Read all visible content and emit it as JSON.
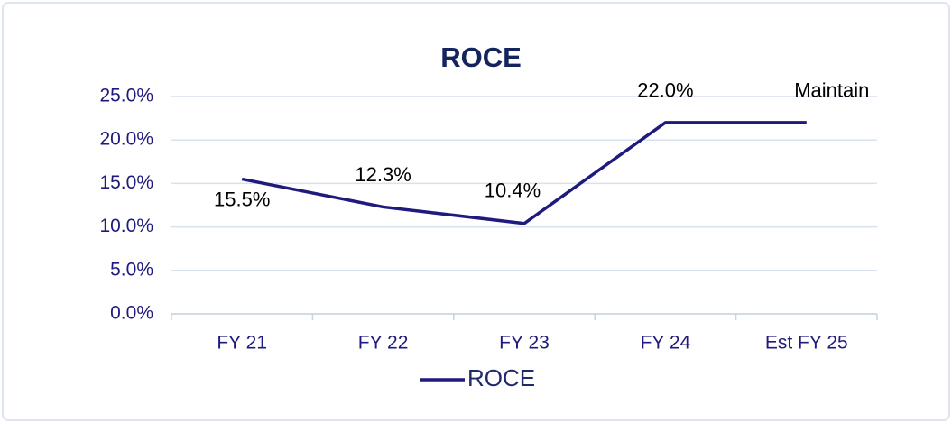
{
  "chart_data": {
    "type": "line",
    "title": "ROCE",
    "categories": [
      "FY 21",
      "FY 22",
      "FY 23",
      "FY 24",
      "Est FY 25"
    ],
    "series": [
      {
        "name": "ROCE",
        "color": "#1f1a7d",
        "values": [
          15.5,
          12.3,
          10.4,
          22.0,
          22.0
        ],
        "value_labels": [
          "15.5%",
          "12.3%",
          "10.4%",
          "22.0%",
          "Maintain"
        ]
      }
    ],
    "ylim": [
      0,
      25
    ],
    "yticks": [
      {
        "value": 0,
        "label": "0.0%"
      },
      {
        "value": 5,
        "label": "5.0%"
      },
      {
        "value": 10,
        "label": "10.0%"
      },
      {
        "value": 15,
        "label": "15.0%"
      },
      {
        "value": 20,
        "label": "20.0%"
      },
      {
        "value": 25,
        "label": "25.0%"
      }
    ],
    "grid": true,
    "legend": "bottom"
  }
}
